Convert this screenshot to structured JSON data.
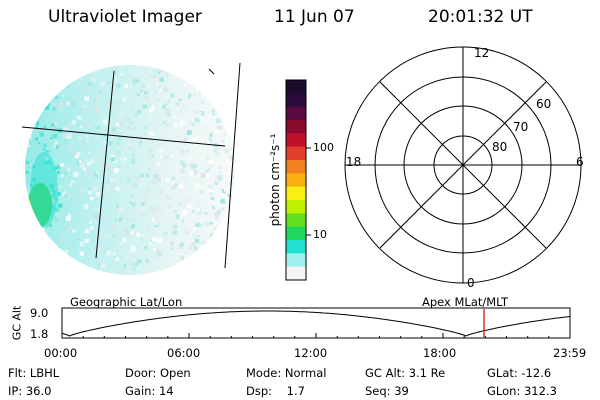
{
  "header": {
    "title": "Ultraviolet Imager",
    "date": "11 Jun 07",
    "time": "20:01:32 UT"
  },
  "colorbar": {
    "label": "photon cm⁻²s⁻¹",
    "ticks": [
      "100",
      "10"
    ],
    "colors": [
      "#1a0d2e",
      "#2a0a3a",
      "#5a0a40",
      "#8a0a2e",
      "#c0102a",
      "#e0402a",
      "#f08020",
      "#f8b010",
      "#f8f010",
      "#c0f000",
      "#60e020",
      "#20d860",
      "#20e0d0",
      "#a0f0f0",
      "#f4f4f4"
    ]
  },
  "polar": {
    "mlt_labels": {
      "top": "12",
      "bottom": "0",
      "left": "18",
      "right": "6"
    },
    "lat_labels": [
      "60",
      "70",
      "80"
    ]
  },
  "orbit": {
    "ylabel": "GC Alt",
    "y_ticks": [
      "9.0",
      "1.8"
    ],
    "left_title": "Geographic Lat/Lon",
    "right_title": "Apex MLat/MLT",
    "x_ticks": [
      "00:00",
      "06:00",
      "12:00",
      "18:00",
      "23:59"
    ]
  },
  "status": {
    "row1": [
      {
        "label": "Flt:",
        "value": "LBHL"
      },
      {
        "label": "Door:",
        "value": "Open"
      },
      {
        "label": "Mode:",
        "value": "Normal"
      },
      {
        "label": "GC Alt:",
        "value": "3.1 Re"
      },
      {
        "label": "GLat:",
        "value": "-12.6"
      }
    ],
    "row2": [
      {
        "label": "IP:",
        "value": "36.0"
      },
      {
        "label": "Gain:",
        "value": "14"
      },
      {
        "label": "Dsp:",
        "value": "1.7"
      },
      {
        "label": "Seq:",
        "value": "39"
      },
      {
        "label": "GLon:",
        "value": "312.3"
      }
    ]
  }
}
